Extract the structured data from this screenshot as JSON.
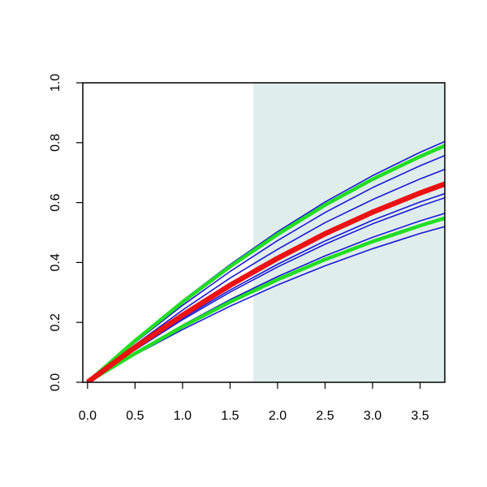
{
  "chart_data": {
    "type": "line",
    "x": [
      0,
      0.5,
      1,
      1.5,
      2,
      2.5,
      3,
      3.5,
      3.76
    ],
    "xlim": [
      -0.05,
      3.76
    ],
    "ylim": [
      0,
      1
    ],
    "xticks": [
      {
        "value": 0,
        "label": "0.0"
      },
      {
        "value": 0.5,
        "label": "0.5"
      },
      {
        "value": 1,
        "label": "1.0"
      },
      {
        "value": 1.5,
        "label": "1.5"
      },
      {
        "value": 2,
        "label": "2.0"
      },
      {
        "value": 2.5,
        "label": "2.5"
      },
      {
        "value": 3,
        "label": "3.0"
      },
      {
        "value": 3.5,
        "label": "3.5"
      }
    ],
    "yticks": [
      {
        "value": 0,
        "label": "0.0"
      },
      {
        "value": 0.2,
        "label": "0.2"
      },
      {
        "value": 0.4,
        "label": "0.4"
      },
      {
        "value": 0.6,
        "label": "0.6"
      },
      {
        "value": 0.8,
        "label": "0.8"
      },
      {
        "value": 1,
        "label": "1.0"
      }
    ],
    "shade_from": 1.745,
    "shade_color": "#e0eded",
    "series": [
      {
        "color": "#1a1ad6",
        "width": 1.6,
        "values": [
          0,
          0.142,
          0.273,
          0.393,
          0.503,
          0.602,
          0.69,
          0.768,
          0.804
        ]
      },
      {
        "color": "#1a1ad6",
        "width": 1.6,
        "values": [
          0,
          0.133,
          0.257,
          0.37,
          0.473,
          0.567,
          0.65,
          0.723,
          0.757
        ]
      },
      {
        "color": "#1a1ad6",
        "width": 1.6,
        "values": [
          0,
          0.125,
          0.241,
          0.348,
          0.444,
          0.533,
          0.61,
          0.679,
          0.711
        ]
      },
      {
        "color": "#1a1ad6",
        "width": 1.6,
        "values": [
          0,
          0.111,
          0.214,
          0.308,
          0.394,
          0.472,
          0.541,
          0.602,
          0.63
        ]
      },
      {
        "color": "#1a1ad6",
        "width": 1.6,
        "values": [
          0,
          0.108,
          0.209,
          0.301,
          0.385,
          0.461,
          0.529,
          0.588,
          0.616
        ]
      },
      {
        "color": "#1a1ad6",
        "width": 1.6,
        "values": [
          0,
          0.099,
          0.191,
          0.276,
          0.353,
          0.422,
          0.484,
          0.539,
          0.564
        ]
      },
      {
        "color": "#1a1ad6",
        "width": 1.6,
        "values": [
          0,
          0.092,
          0.176,
          0.254,
          0.325,
          0.389,
          0.446,
          0.497,
          0.52
        ]
      },
      {
        "color": "#22dd22",
        "width": 4.5,
        "values": [
          0,
          0.139,
          0.268,
          0.386,
          0.494,
          0.592,
          0.678,
          0.754,
          0.79
        ]
      },
      {
        "color": "#22dd22",
        "width": 4.5,
        "values": [
          0,
          0.096,
          0.186,
          0.268,
          0.343,
          0.41,
          0.47,
          0.523,
          0.548
        ]
      },
      {
        "color": "#ee1111",
        "width": 6.5,
        "values": [
          0,
          0.117,
          0.224,
          0.324,
          0.414,
          0.496,
          0.568,
          0.632,
          0.662
        ]
      }
    ]
  }
}
